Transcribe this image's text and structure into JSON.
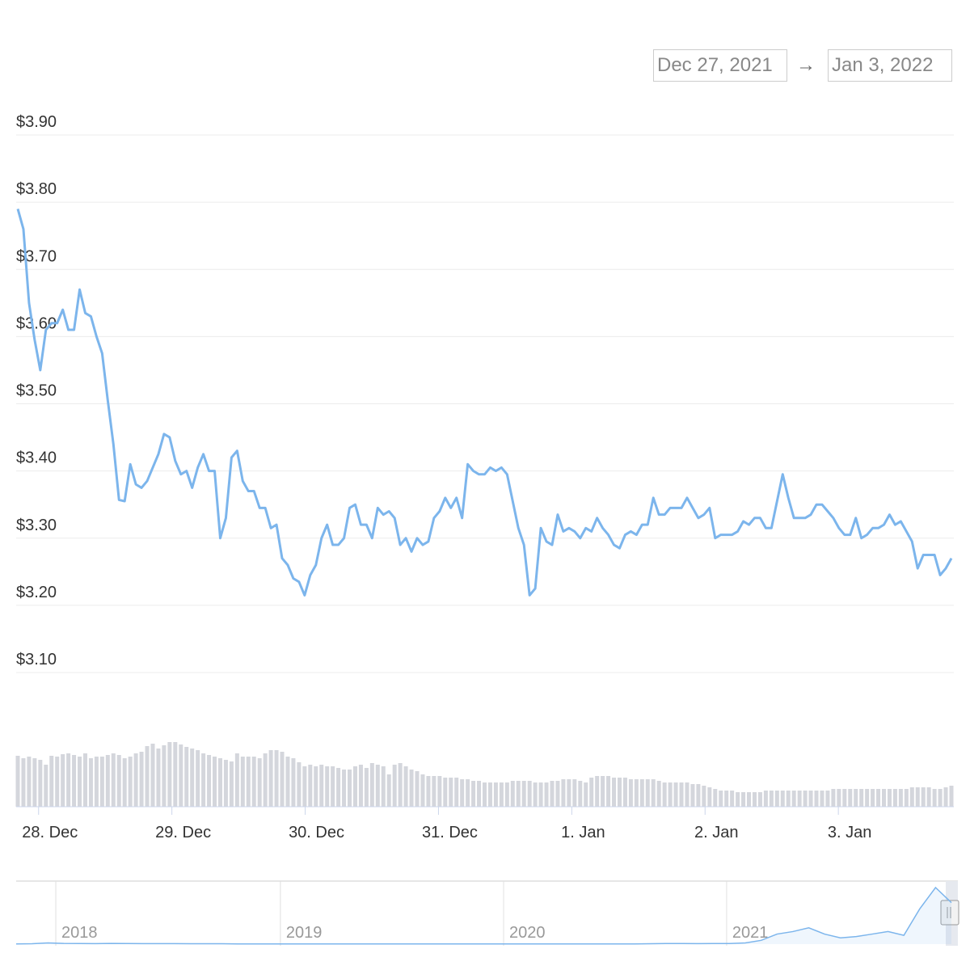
{
  "range": {
    "from": "Dec 27, 2021",
    "arrow": "→",
    "to": "Jan 3, 2022"
  },
  "chart_data": {
    "type": "line",
    "color": "#7cb5ec",
    "grid": true,
    "ylim": [
      3.1,
      3.9
    ],
    "yticks": [
      {
        "value": 3.9,
        "label": "$3.90"
      },
      {
        "value": 3.8,
        "label": "$3.80"
      },
      {
        "value": 3.7,
        "label": "$3.70"
      },
      {
        "value": 3.6,
        "label": "$3.60"
      },
      {
        "value": 3.5,
        "label": "$3.50"
      },
      {
        "value": 3.4,
        "label": "$3.40"
      },
      {
        "value": 3.3,
        "label": "$3.30"
      },
      {
        "value": 3.2,
        "label": "$3.20"
      },
      {
        "value": 3.1,
        "label": "$3.10"
      }
    ],
    "xticks": [
      {
        "value": 3.7,
        "label": "28. Dec"
      },
      {
        "value": 27.4,
        "label": "29. Dec"
      },
      {
        "value": 51.1,
        "label": "30. Dec"
      },
      {
        "value": 74.8,
        "label": "31. Dec"
      },
      {
        "value": 98.5,
        "label": "1. Jan"
      },
      {
        "value": 122.2,
        "label": "2. Jan"
      },
      {
        "value": 145.9,
        "label": "3. Jan"
      }
    ],
    "values": [
      3.79,
      3.76,
      3.65,
      3.595,
      3.55,
      3.61,
      3.62,
      3.62,
      3.64,
      3.61,
      3.61,
      3.67,
      3.635,
      3.63,
      3.6,
      3.575,
      3.505,
      3.44,
      3.357,
      3.355,
      3.41,
      3.38,
      3.375,
      3.385,
      3.405,
      3.425,
      3.455,
      3.45,
      3.415,
      3.395,
      3.4,
      3.375,
      3.405,
      3.425,
      3.4,
      3.4,
      3.3,
      3.33,
      3.42,
      3.43,
      3.385,
      3.37,
      3.37,
      3.345,
      3.345,
      3.315,
      3.32,
      3.27,
      3.26,
      3.24,
      3.235,
      3.215,
      3.245,
      3.26,
      3.3,
      3.32,
      3.29,
      3.29,
      3.3,
      3.345,
      3.35,
      3.32,
      3.32,
      3.3,
      3.345,
      3.335,
      3.34,
      3.33,
      3.29,
      3.3,
      3.28,
      3.3,
      3.29,
      3.295,
      3.33,
      3.34,
      3.36,
      3.345,
      3.36,
      3.33,
      3.41,
      3.4,
      3.395,
      3.395,
      3.405,
      3.4,
      3.405,
      3.395,
      3.355,
      3.315,
      3.29,
      3.215,
      3.225,
      3.315,
      3.295,
      3.29,
      3.335,
      3.31,
      3.315,
      3.31,
      3.3,
      3.315,
      3.31,
      3.33,
      3.315,
      3.305,
      3.29,
      3.285,
      3.305,
      3.31,
      3.305,
      3.32,
      3.32,
      3.36,
      3.335,
      3.335,
      3.345,
      3.345,
      3.345,
      3.36,
      3.345,
      3.33,
      3.335,
      3.345,
      3.3,
      3.305,
      3.305,
      3.305,
      3.31,
      3.325,
      3.32,
      3.33,
      3.33,
      3.315,
      3.315,
      3.355,
      3.395,
      3.36,
      3.33,
      3.33,
      3.33,
      3.335,
      3.35,
      3.35,
      3.34,
      3.33,
      3.315,
      3.305,
      3.305,
      3.33,
      3.3,
      3.305,
      3.315,
      3.315,
      3.32,
      3.335,
      3.32,
      3.325,
      3.31,
      3.295,
      3.255,
      3.275,
      3.275,
      3.275,
      3.245,
      3.255,
      3.27
    ],
    "volume": {
      "color": "#d4d6dc",
      "values": [
        63,
        60,
        62,
        60,
        58,
        52,
        63,
        62,
        65,
        66,
        64,
        62,
        66,
        60,
        62,
        62,
        64,
        66,
        64,
        60,
        62,
        66,
        68,
        75,
        78,
        72,
        76,
        80,
        80,
        77,
        74,
        72,
        70,
        66,
        64,
        62,
        60,
        58,
        56,
        66,
        62,
        62,
        62,
        60,
        66,
        70,
        70,
        68,
        62,
        60,
        55,
        50,
        52,
        50,
        52,
        50,
        50,
        48,
        46,
        46,
        50,
        52,
        48,
        54,
        52,
        50,
        40,
        52,
        54,
        50,
        46,
        44,
        40,
        38,
        38,
        38,
        36,
        36,
        36,
        34,
        34,
        32,
        32,
        30,
        30,
        30,
        30,
        30,
        32,
        32,
        32,
        32,
        30,
        30,
        30,
        32,
        32,
        34,
        34,
        34,
        32,
        30,
        36,
        38,
        38,
        38,
        36,
        36,
        36,
        34,
        34,
        34,
        34,
        34,
        32,
        30,
        30,
        30,
        30,
        30,
        28,
        28,
        26,
        24,
        22,
        20,
        20,
        20,
        18,
        18,
        18,
        18,
        18,
        20,
        20,
        20,
        20,
        20,
        20,
        20,
        20,
        20,
        20,
        20,
        20,
        22,
        22,
        22,
        22,
        22,
        22,
        22,
        22,
        22,
        22,
        22,
        22,
        22,
        22,
        24,
        24,
        24,
        24,
        22,
        22,
        24,
        26
      ]
    },
    "navigator": {
      "values": [
        0.02,
        0.03,
        0.1,
        0.06,
        0.05,
        0.04,
        0.06,
        0.05,
        0.04,
        0.04,
        0.04,
        0.03,
        0.03,
        0.03,
        0.02,
        0.02,
        0.02,
        0.02,
        0.02,
        0.02,
        0.02,
        0.02,
        0.02,
        0.02,
        0.02,
        0.02,
        0.02,
        0.02,
        0.02,
        0.02,
        0.02,
        0.02,
        0.02,
        0.02,
        0.02,
        0.02,
        0.02,
        0.02,
        0.02,
        0.02,
        0.03,
        0.05,
        0.05,
        0.04,
        0.05,
        0.05,
        0.1,
        0.3,
        0.8,
        1.0,
        1.3,
        0.8,
        0.5,
        0.6,
        0.8,
        1.0,
        0.7,
        2.8,
        4.5,
        3.3
      ],
      "xticks": [
        {
          "value": 2.5,
          "label": "2018"
        },
        {
          "value": 16.67,
          "label": "2019"
        },
        {
          "value": 30.75,
          "label": "2020"
        },
        {
          "value": 44.82,
          "label": "2021"
        }
      ]
    }
  }
}
